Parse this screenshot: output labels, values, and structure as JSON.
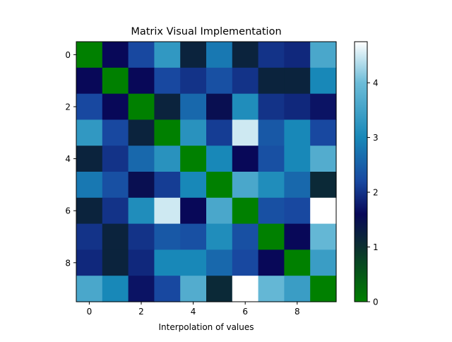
{
  "chart_data": {
    "type": "heatmap",
    "title": "Matrix Visual Implementation",
    "xlabel": "Interpolation of values",
    "ylabel": "",
    "rows": 10,
    "cols": 10,
    "xticks": [
      "0",
      "2",
      "4",
      "6",
      "8"
    ],
    "yticks": [
      "0",
      "2",
      "4",
      "6",
      "8"
    ],
    "colorbar": {
      "vmin": 0,
      "vmax": 4.75,
      "ticks": [
        "0",
        "1",
        "2",
        "3",
        "4"
      ],
      "tick_values": [
        0,
        1,
        2,
        3,
        4
      ],
      "colormap_stops": [
        {
          "v": 0.0,
          "color": "#008000"
        },
        {
          "v": 1.0,
          "color": "#0c3030"
        },
        {
          "v": 1.6,
          "color": "#080858"
        },
        {
          "v": 2.2,
          "color": "#1848a0"
        },
        {
          "v": 3.0,
          "color": "#1888b8"
        },
        {
          "v": 4.0,
          "color": "#6cbcd8"
        },
        {
          "v": 4.75,
          "color": "#ffffff"
        }
      ]
    },
    "matrix": [
      [
        0.0,
        1.6,
        2.2,
        3.3,
        1.2,
        2.8,
        1.2,
        2.0,
        1.9,
        3.6
      ],
      [
        1.6,
        0.0,
        1.6,
        2.2,
        2.0,
        2.3,
        2.0,
        1.2,
        1.2,
        3.0
      ],
      [
        2.2,
        1.6,
        0.0,
        1.2,
        2.6,
        1.5,
        3.1,
        2.0,
        1.9,
        1.7
      ],
      [
        3.3,
        2.2,
        1.2,
        0.0,
        3.2,
        2.1,
        4.5,
        2.4,
        3.0,
        2.2
      ],
      [
        1.2,
        2.0,
        2.6,
        3.2,
        0.0,
        3.0,
        1.6,
        2.3,
        3.0,
        3.7
      ],
      [
        2.8,
        2.3,
        1.5,
        2.1,
        3.0,
        0.0,
        3.6,
        3.1,
        2.6,
        1.1
      ],
      [
        1.2,
        2.0,
        3.1,
        4.5,
        1.6,
        3.6,
        0.0,
        2.3,
        2.2,
        4.75
      ],
      [
        2.0,
        1.2,
        2.0,
        2.4,
        2.3,
        3.1,
        2.3,
        0.0,
        1.6,
        3.9
      ],
      [
        1.9,
        1.2,
        1.9,
        3.0,
        3.0,
        2.6,
        2.2,
        1.6,
        0.0,
        3.4
      ],
      [
        3.6,
        3.0,
        1.7,
        2.2,
        3.7,
        1.1,
        4.75,
        3.9,
        3.4,
        0.0
      ]
    ]
  }
}
